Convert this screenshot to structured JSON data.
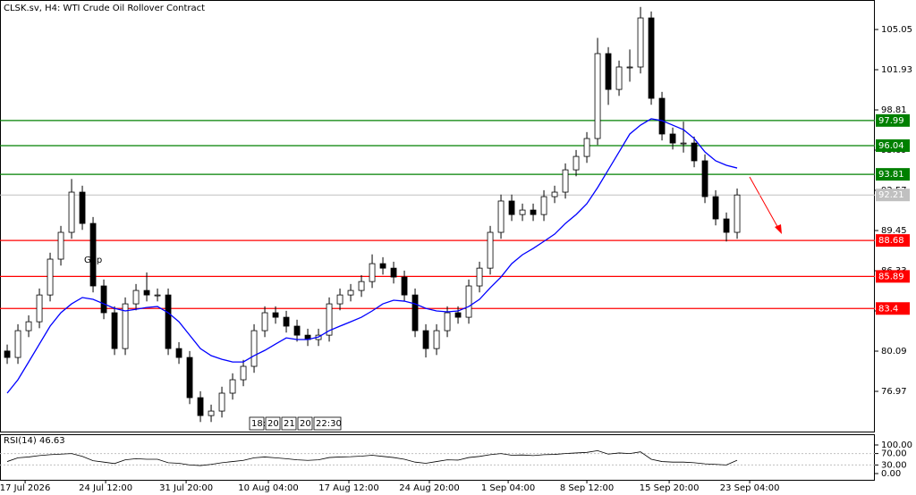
{
  "chart_data": {
    "type": "candlestick",
    "title": "CLSK.sv, H4:  WTI Crude Oil Rollover Contract",
    "annotation": "Gap",
    "cursor_labels": [
      "18:",
      "20",
      "21",
      "20",
      "22:30"
    ],
    "bull_color": "#ffffff",
    "bear_color": "#000000",
    "outline_color": "#000000",
    "open": [
      80.1,
      79.6,
      81.68,
      82.37,
      84.45,
      87.23,
      89.31,
      92.43,
      90.0,
      85.15,
      83.07,
      80.29,
      83.76,
      84.8,
      84.45,
      84.45,
      80.29,
      79.6,
      76.48,
      75.09,
      75.44,
      76.83,
      77.87,
      78.91,
      81.68,
      83.07,
      82.72,
      82.03,
      81.33,
      80.99,
      81.33,
      83.76,
      84.45,
      84.8,
      85.49,
      86.88,
      86.53,
      85.84,
      84.45,
      81.68,
      80.29,
      81.68,
      83.07,
      82.72,
      85.15,
      86.53,
      89.31,
      91.74,
      90.69,
      91.04,
      90.69,
      92.08,
      92.43,
      94.16,
      95.2,
      96.59,
      103.18,
      100.4,
      102.14,
      102.14,
      105.95,
      99.71,
      96.94,
      96.24,
      96.24,
      94.86,
      92.08,
      90.35,
      89.31
    ],
    "high": [
      80.6,
      82.18,
      82.87,
      84.95,
      87.73,
      89.81,
      93.45,
      92.93,
      90.5,
      85.65,
      83.57,
      84.26,
      85.3,
      86.2,
      84.95,
      84.95,
      80.79,
      80.1,
      76.98,
      75.94,
      77.33,
      78.37,
      79.41,
      82.18,
      83.57,
      83.57,
      83.22,
      82.53,
      81.83,
      81.83,
      84.26,
      84.95,
      85.3,
      85.99,
      87.6,
      87.38,
      87.03,
      86.34,
      84.95,
      82.18,
      82.18,
      83.57,
      83.57,
      85.65,
      87.03,
      89.81,
      92.24,
      92.24,
      91.54,
      91.54,
      92.58,
      92.93,
      94.66,
      95.7,
      97.09,
      104.4,
      103.68,
      102.64,
      103.5,
      106.8,
      106.45,
      100.21,
      97.44,
      97.9,
      96.74,
      95.36,
      92.58,
      90.85,
      92.71
    ],
    "low": [
      79.1,
      79.1,
      81.18,
      81.87,
      83.95,
      86.73,
      88.81,
      89.5,
      84.65,
      82.57,
      79.79,
      79.79,
      83.26,
      83.95,
      83.95,
      79.79,
      79.1,
      75.98,
      74.59,
      74.59,
      74.94,
      76.33,
      77.37,
      78.41,
      81.18,
      82.22,
      81.53,
      80.83,
      80.49,
      80.49,
      80.83,
      83.26,
      83.95,
      84.3,
      84.99,
      86.03,
      85.34,
      83.95,
      81.18,
      79.6,
      79.79,
      81.18,
      82.22,
      82.22,
      84.65,
      86.03,
      88.81,
      90.19,
      90.19,
      90.19,
      90.19,
      91.58,
      91.93,
      93.66,
      94.7,
      96.09,
      99.2,
      99.9,
      101.0,
      101.64,
      99.21,
      96.44,
      95.74,
      95.5,
      94.36,
      91.58,
      89.85,
      88.6,
      88.81
    ],
    "close": [
      79.6,
      81.68,
      82.37,
      84.45,
      87.23,
      89.31,
      92.43,
      90.0,
      85.15,
      83.07,
      80.29,
      83.76,
      84.8,
      84.45,
      84.45,
      80.29,
      79.6,
      76.48,
      75.09,
      75.44,
      76.83,
      77.87,
      78.91,
      81.68,
      83.07,
      82.72,
      82.03,
      81.33,
      80.99,
      81.33,
      83.76,
      84.45,
      84.8,
      85.49,
      86.88,
      86.53,
      85.84,
      84.45,
      81.68,
      80.29,
      81.68,
      83.07,
      82.72,
      85.15,
      86.53,
      89.31,
      91.74,
      90.69,
      91.04,
      90.69,
      92.08,
      92.43,
      94.16,
      95.2,
      96.59,
      103.18,
      100.4,
      102.14,
      102.14,
      105.95,
      99.71,
      96.94,
      96.24,
      96.24,
      94.86,
      92.08,
      90.35,
      89.31,
      92.21
    ],
    "ma": {
      "color": "#0000ff",
      "values": [
        76.83,
        77.87,
        79.25,
        80.64,
        82.03,
        83.07,
        83.76,
        84.25,
        84.11,
        83.76,
        83.41,
        83.21,
        83.34,
        83.48,
        83.55,
        83.07,
        82.37,
        81.33,
        80.29,
        79.74,
        79.46,
        79.25,
        79.25,
        79.74,
        80.15,
        80.64,
        81.12,
        80.99,
        80.99,
        81.19,
        81.68,
        82.03,
        82.37,
        82.72,
        83.21,
        83.76,
        84.04,
        83.97,
        83.76,
        83.41,
        83.21,
        83.14,
        83.21,
        83.55,
        84.11,
        85.01,
        85.84,
        86.88,
        87.57,
        88.06,
        88.61,
        89.17,
        90.0,
        90.69,
        91.53,
        92.78,
        94.16,
        95.55,
        96.94,
        97.63,
        98.12,
        97.98,
        97.63,
        97.28,
        96.59,
        95.55,
        94.86,
        94.51,
        94.3
      ]
    },
    "current_price": {
      "value": 92.21,
      "color": "#c0c0c0"
    },
    "levels": [
      {
        "value": 97.99,
        "color": "#008000"
      },
      {
        "value": 96.04,
        "color": "#008000"
      },
      {
        "value": 93.81,
        "color": "#008000"
      },
      {
        "value": 88.68,
        "color": "#ff0000"
      },
      {
        "value": 85.89,
        "color": "#ff0000"
      },
      {
        "value": 83.4,
        "color": "#ff0000"
      }
    ],
    "xlim": [
      -0.67,
      80.83
    ],
    "xticks": [
      {
        "value": 1.67,
        "label": "17 Jul 2026"
      },
      {
        "value": 9.17,
        "label": "24 Jul 12:00"
      },
      {
        "value": 16.67,
        "label": "31 Jul 20:00"
      },
      {
        "value": 24.33,
        "label": "10 Aug 04:00"
      },
      {
        "value": 31.83,
        "label": "17 Aug 12:00"
      },
      {
        "value": 39.33,
        "label": "24 Aug 20:00"
      },
      {
        "value": 46.67,
        "label": "1 Sep 04:00"
      },
      {
        "value": 54,
        "label": "8 Sep 12:00"
      },
      {
        "value": 61.67,
        "label": "15 Sep 20:00"
      },
      {
        "value": 69.17,
        "label": "23 Sep 04:00"
      }
    ],
    "ylim": [
      73.78,
      107.34
    ],
    "yticks": [
      105.05,
      101.93,
      98.81,
      95.69,
      92.57,
      89.45,
      86.33,
      83.21,
      80.09,
      76.97
    ],
    "rsi": {
      "name": "RSI(14)",
      "color": "#000000",
      "values": [
        42,
        55,
        58,
        63,
        66,
        68,
        70,
        60,
        45,
        40,
        35,
        48,
        52,
        50,
        50,
        38,
        36,
        30,
        28,
        32,
        38,
        42,
        46,
        55,
        58,
        55,
        52,
        48,
        46,
        48,
        56,
        58,
        59,
        61,
        64,
        60,
        56,
        50,
        40,
        36,
        42,
        48,
        47,
        56,
        60,
        66,
        70,
        64,
        65,
        63,
        66,
        67,
        70,
        72,
        74,
        80,
        68,
        72,
        70,
        76,
        50,
        42,
        40,
        40,
        38,
        34,
        32,
        30,
        46.63
      ],
      "ylim": [
        0,
        100
      ],
      "yticks": [
        {
          "value": 100,
          "label": "100.00"
        },
        {
          "value": 70,
          "label": "70.00"
        },
        {
          "value": 30,
          "label": "30.00"
        },
        {
          "value": 0,
          "label": "0.00"
        }
      ]
    }
  }
}
